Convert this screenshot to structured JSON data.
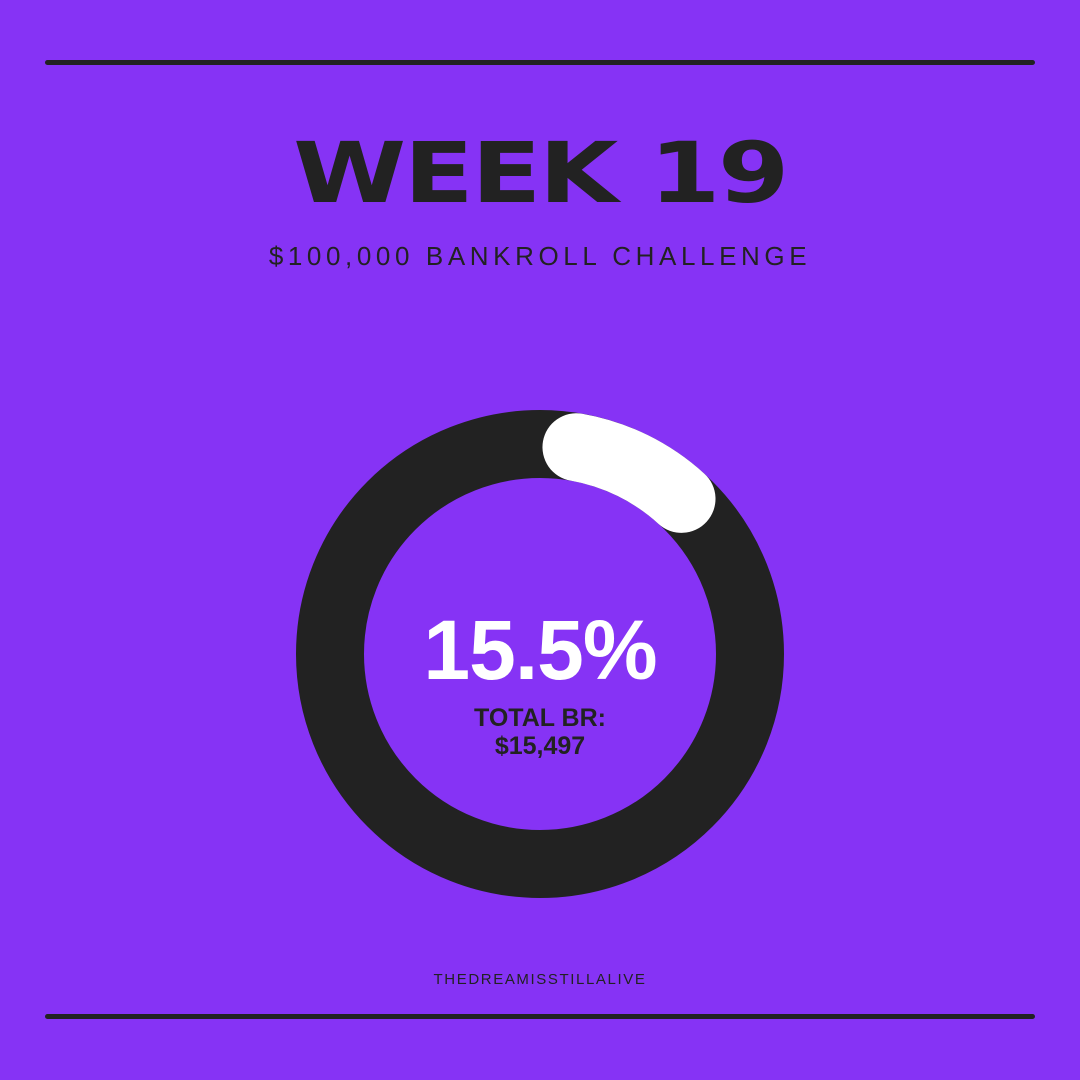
{
  "header": {
    "title": "WEEK 19",
    "subtitle": "$100,000 BANKROLL CHALLENGE"
  },
  "progress": {
    "percent_label": "15.5%",
    "percent_value": 15.5,
    "total_label": "TOTAL BR:",
    "total_value": "$15,497"
  },
  "footer": {
    "text": "THEDREAMISSTILLALIVE"
  },
  "colors": {
    "background": "#8633f5",
    "ring_track": "#222222",
    "ring_progress": "#ffffff",
    "text_dark": "#222222",
    "text_light": "#ffffff"
  }
}
